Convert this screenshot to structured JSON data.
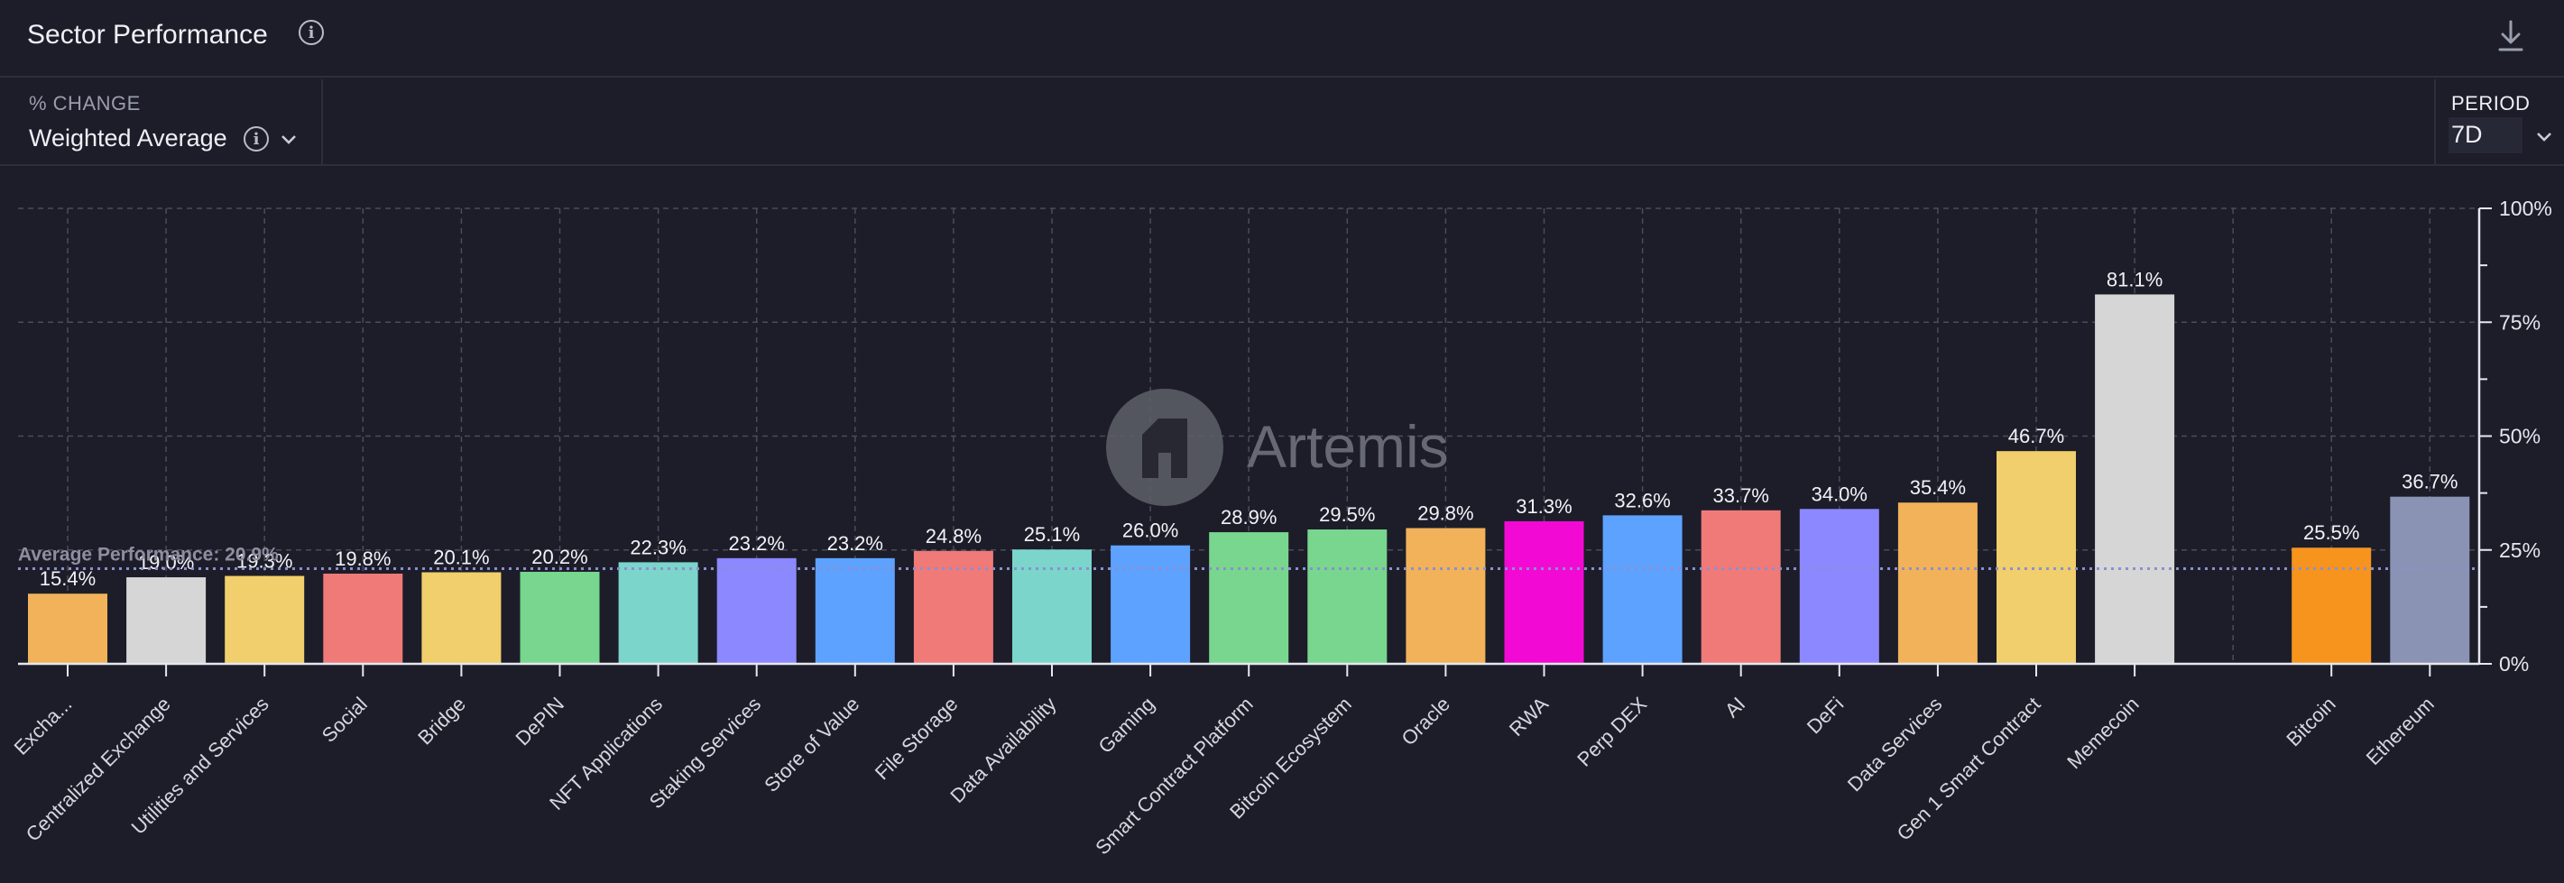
{
  "header": {
    "title": "Sector Performance",
    "info_icon": "info-icon",
    "download_icon": "download-icon"
  },
  "controls": {
    "metric_label": "% CHANGE",
    "metric_value": "Weighted Average",
    "period_label": "PERIOD",
    "period_value": "7D"
  },
  "watermark": "Artemis",
  "colors": {
    "background": "#1c1d29",
    "grid": "#4a4c5a",
    "average_line": "#8c8fd0"
  },
  "chart_data": {
    "type": "bar",
    "ylim": [
      0,
      100
    ],
    "yticks": [
      "100%",
      "75%",
      "50%",
      "25%",
      "0%"
    ],
    "y_axis_position": "right",
    "grid": true,
    "average_line": {
      "label": "Average Performance: 20.9%",
      "value": 20.9
    },
    "bars": [
      {
        "category": "Exchange",
        "label": "Excha...",
        "value": 15.4,
        "value_label": "15.4%",
        "color": "#f2b25a"
      },
      {
        "category": "Centralized Exchange",
        "label": "Centralized Exchange",
        "value": 19.0,
        "value_label": "19.0%",
        "color": "#d6d6d6"
      },
      {
        "category": "Utilities and Services",
        "label": "Utilities and Services",
        "value": 19.3,
        "value_label": "19.3%",
        "color": "#f0cf6c"
      },
      {
        "category": "Social",
        "label": "Social",
        "value": 19.8,
        "value_label": "19.8%",
        "color": "#f07a78"
      },
      {
        "category": "Bridge",
        "label": "Bridge",
        "value": 20.1,
        "value_label": "20.1%",
        "color": "#f0cf6c"
      },
      {
        "category": "DePIN",
        "label": "DePIN",
        "value": 20.2,
        "value_label": "20.2%",
        "color": "#78d68e"
      },
      {
        "category": "NFT Applications",
        "label": "NFT Applications",
        "value": 22.3,
        "value_label": "22.3%",
        "color": "#7bd5cb"
      },
      {
        "category": "Staking Services",
        "label": "Staking Services",
        "value": 23.2,
        "value_label": "23.2%",
        "color": "#8c88ff"
      },
      {
        "category": "Store of Value",
        "label": "Store of Value",
        "value": 23.2,
        "value_label": "23.2%",
        "color": "#5ea2ff"
      },
      {
        "category": "File Storage",
        "label": "File Storage",
        "value": 24.8,
        "value_label": "24.8%",
        "color": "#f07a78"
      },
      {
        "category": "Data Availability",
        "label": "Data Availability",
        "value": 25.1,
        "value_label": "25.1%",
        "color": "#7bd5cb"
      },
      {
        "category": "Gaming",
        "label": "Gaming",
        "value": 26.0,
        "value_label": "26.0%",
        "color": "#5ea2ff"
      },
      {
        "category": "Smart Contract Platform",
        "label": "Smart Contract Platform",
        "value": 28.9,
        "value_label": "28.9%",
        "color": "#78d68e"
      },
      {
        "category": "Bitcoin Ecosystem",
        "label": "Bitcoin Ecosystem",
        "value": 29.5,
        "value_label": "29.5%",
        "color": "#78d68e"
      },
      {
        "category": "Oracle",
        "label": "Oracle",
        "value": 29.8,
        "value_label": "29.8%",
        "color": "#f2b25a"
      },
      {
        "category": "RWA",
        "label": "RWA",
        "value": 31.3,
        "value_label": "31.3%",
        "color": "#f20ad4"
      },
      {
        "category": "Perp DEX",
        "label": "Perp DEX",
        "value": 32.6,
        "value_label": "32.6%",
        "color": "#5ea2ff"
      },
      {
        "category": "AI",
        "label": "AI",
        "value": 33.7,
        "value_label": "33.7%",
        "color": "#f07a78"
      },
      {
        "category": "DeFi",
        "label": "DeFi",
        "value": 34.0,
        "value_label": "34.0%",
        "color": "#8c88ff"
      },
      {
        "category": "Data Services",
        "label": "Data Services",
        "value": 35.4,
        "value_label": "35.4%",
        "color": "#f2b25a"
      },
      {
        "category": "Gen 1 Smart Contract",
        "label": "Gen 1 Smart Contract",
        "value": 46.7,
        "value_label": "46.7%",
        "color": "#f0cf6c"
      },
      {
        "category": "Memecoin",
        "label": "Memecoin",
        "value": 81.1,
        "value_label": "81.1%",
        "color": "#d6d6d6"
      },
      {
        "category": "Bitcoin",
        "label": "Bitcoin",
        "value": 25.5,
        "value_label": "25.5%",
        "color": "#f7941d",
        "gap_before": true
      },
      {
        "category": "Ethereum",
        "label": "Ethereum",
        "value": 36.7,
        "value_label": "36.7%",
        "color": "#8a93b4"
      }
    ]
  }
}
